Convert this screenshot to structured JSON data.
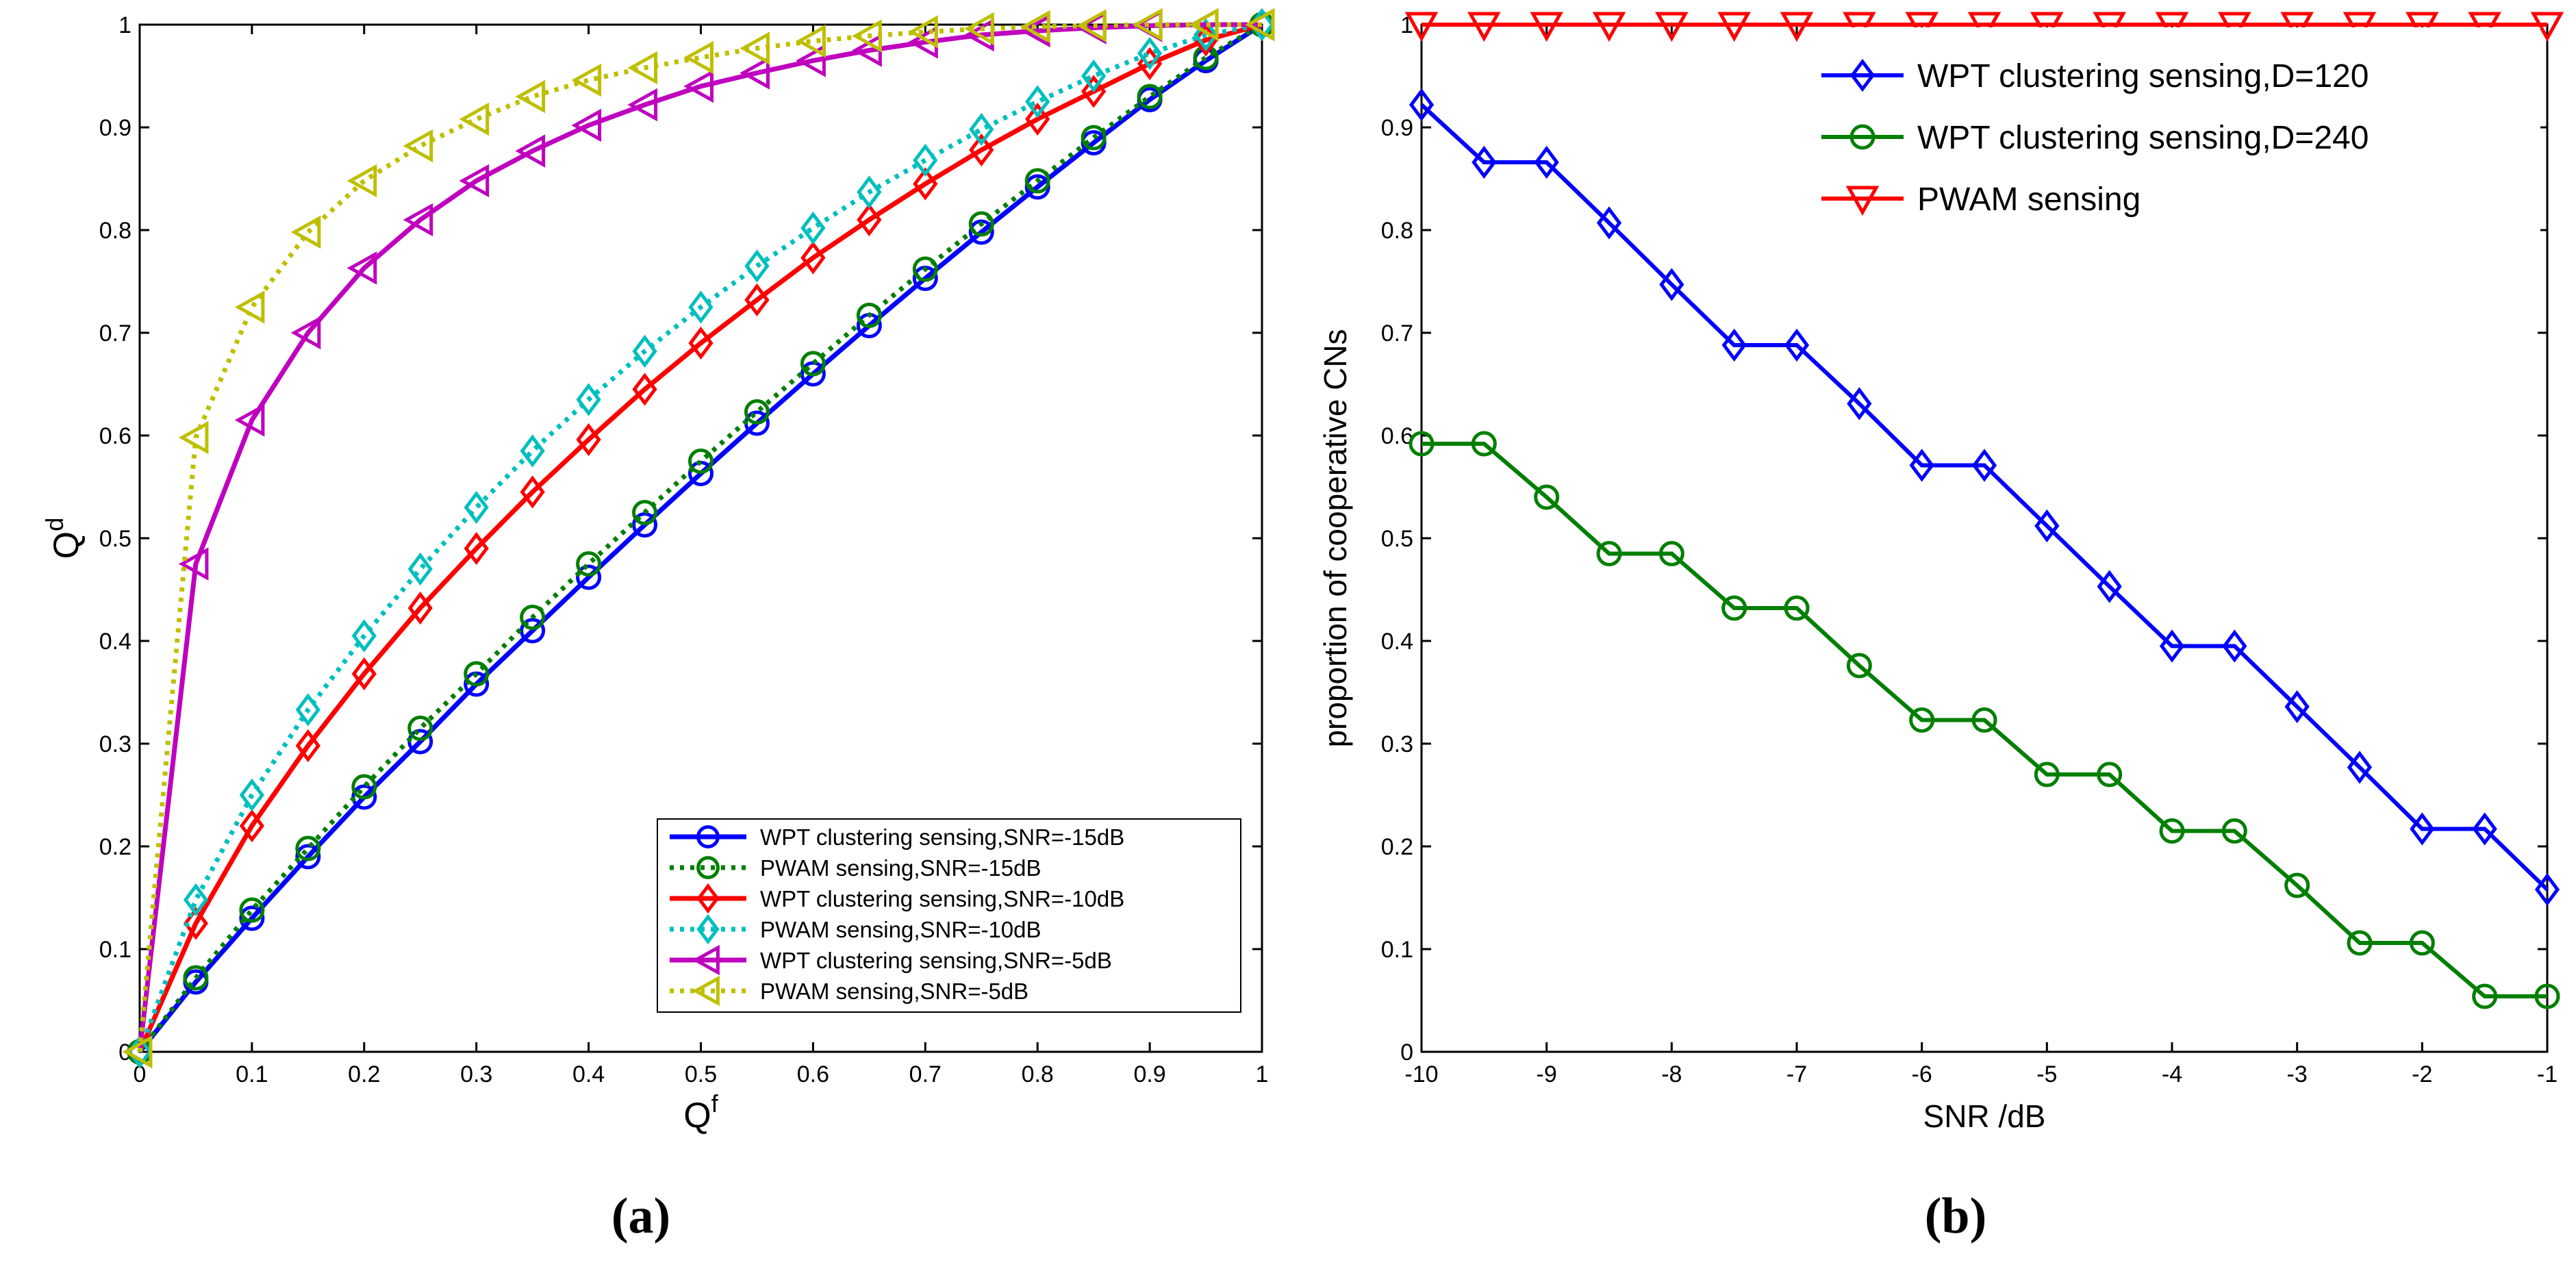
{
  "chart_data": [
    {
      "type": "line",
      "caption": "(a)",
      "xlabel": "Q",
      "xlabel_sup": "f",
      "ylabel": "Q",
      "ylabel_sup": "d",
      "xlim": [
        0,
        1
      ],
      "ylim": [
        0,
        1
      ],
      "xticks": [
        0,
        0.1,
        0.2,
        0.3,
        0.4,
        0.5,
        0.6,
        0.7,
        0.8,
        0.9,
        1
      ],
      "yticks": [
        0,
        0.1,
        0.2,
        0.3,
        0.4,
        0.5,
        0.6,
        0.7,
        0.8,
        0.9,
        1
      ],
      "legend_position": "bottom-right",
      "x": [
        0,
        0.05,
        0.1,
        0.15,
        0.2,
        0.25,
        0.3,
        0.35,
        0.4,
        0.45,
        0.5,
        0.55,
        0.6,
        0.65,
        0.7,
        0.75,
        0.8,
        0.85,
        0.9,
        0.95,
        1
      ],
      "series": [
        {
          "name": "WPT clustering sensing,SNR=-15dB",
          "color": "#0000ff",
          "dash": "solid",
          "marker": "circle",
          "values": [
            0,
            0.068,
            0.13,
            0.19,
            0.248,
            0.302,
            0.358,
            0.41,
            0.462,
            0.513,
            0.563,
            0.612,
            0.66,
            0.707,
            0.753,
            0.798,
            0.842,
            0.885,
            0.927,
            0.965,
            1
          ]
        },
        {
          "name": "PWAM sensing,SNR=-15dB",
          "color": "#007f00",
          "dash": "dotted",
          "marker": "circle",
          "values": [
            0,
            0.072,
            0.138,
            0.198,
            0.258,
            0.315,
            0.368,
            0.423,
            0.475,
            0.525,
            0.575,
            0.623,
            0.67,
            0.717,
            0.762,
            0.806,
            0.848,
            0.89,
            0.93,
            0.968,
            1
          ]
        },
        {
          "name": "WPT clustering sensing,SNR=-10dB",
          "color": "#ff0000",
          "dash": "solid",
          "marker": "diamond",
          "values": [
            0,
            0.125,
            0.22,
            0.298,
            0.368,
            0.432,
            0.49,
            0.545,
            0.596,
            0.645,
            0.69,
            0.732,
            0.773,
            0.81,
            0.845,
            0.878,
            0.908,
            0.935,
            0.962,
            0.985,
            1
          ]
        },
        {
          "name": "PWAM sensing,SNR=-10dB",
          "color": "#00bfbf",
          "dash": "dotted",
          "marker": "diamond",
          "values": [
            0,
            0.148,
            0.25,
            0.333,
            0.405,
            0.47,
            0.53,
            0.585,
            0.635,
            0.682,
            0.725,
            0.765,
            0.802,
            0.837,
            0.868,
            0.898,
            0.925,
            0.95,
            0.972,
            0.99,
            1
          ]
        },
        {
          "name": "WPT clustering sensing,SNR=-5dB",
          "color": "#bf00bf",
          "dash": "solid",
          "marker": "triangle-left",
          "values": [
            0,
            0.475,
            0.615,
            0.7,
            0.763,
            0.81,
            0.848,
            0.877,
            0.902,
            0.922,
            0.94,
            0.953,
            0.965,
            0.975,
            0.983,
            0.99,
            0.994,
            0.997,
            0.999,
            1,
            1
          ]
        },
        {
          "name": "PWAM sensing,SNR=-5dB",
          "color": "#bfbf00",
          "dash": "dotted",
          "marker": "triangle-left",
          "values": [
            0,
            0.598,
            0.725,
            0.798,
            0.848,
            0.882,
            0.908,
            0.93,
            0.946,
            0.958,
            0.968,
            0.977,
            0.984,
            0.989,
            0.993,
            0.996,
            0.998,
            0.999,
            1,
            1,
            1
          ]
        }
      ]
    },
    {
      "type": "line",
      "caption": "(b)",
      "xlabel": "SNR /dB",
      "ylabel": "proportion of cooperative CNs",
      "xlim": [
        -10,
        -1
      ],
      "ylim": [
        0,
        1
      ],
      "xticks": [
        -10,
        -9,
        -8,
        -7,
        -6,
        -5,
        -4,
        -3,
        -2,
        -1
      ],
      "yticks": [
        0,
        0.1,
        0.2,
        0.3,
        0.4,
        0.5,
        0.6,
        0.7,
        0.8,
        0.9,
        1
      ],
      "legend_position": "top-right",
      "x": [
        -10,
        -9.5,
        -9,
        -8.5,
        -8,
        -7.5,
        -7,
        -6.5,
        -6,
        -5.5,
        -5,
        -4.5,
        -4,
        -3.5,
        -3,
        -2.5,
        -2,
        -1.5,
        -1
      ],
      "series": [
        {
          "name": "WPT clustering sensing,D=120",
          "color": "#0000ff",
          "dash": "solid",
          "marker": "diamond",
          "values": [
            0.922,
            0.866,
            0.866,
            0.807,
            0.747,
            0.688,
            0.688,
            0.631,
            0.571,
            0.571,
            0.512,
            0.453,
            0.395,
            0.395,
            0.336,
            0.277,
            0.217,
            0.217,
            0.158
          ]
        },
        {
          "name": "WPT clustering sensing,D=240",
          "color": "#007f00",
          "dash": "solid",
          "marker": "circle",
          "values": [
            0.592,
            0.592,
            0.54,
            0.485,
            0.485,
            0.432,
            0.432,
            0.376,
            0.323,
            0.323,
            0.27,
            0.27,
            0.215,
            0.215,
            0.162,
            0.106,
            0.106,
            0.054,
            0.054
          ]
        },
        {
          "name": "PWAM sensing",
          "color": "#ff0000",
          "dash": "solid",
          "marker": "triangle-down",
          "values": [
            1,
            1,
            1,
            1,
            1,
            1,
            1,
            1,
            1,
            1,
            1,
            1,
            1,
            1,
            1,
            1,
            1,
            1,
            1
          ]
        }
      ]
    }
  ]
}
